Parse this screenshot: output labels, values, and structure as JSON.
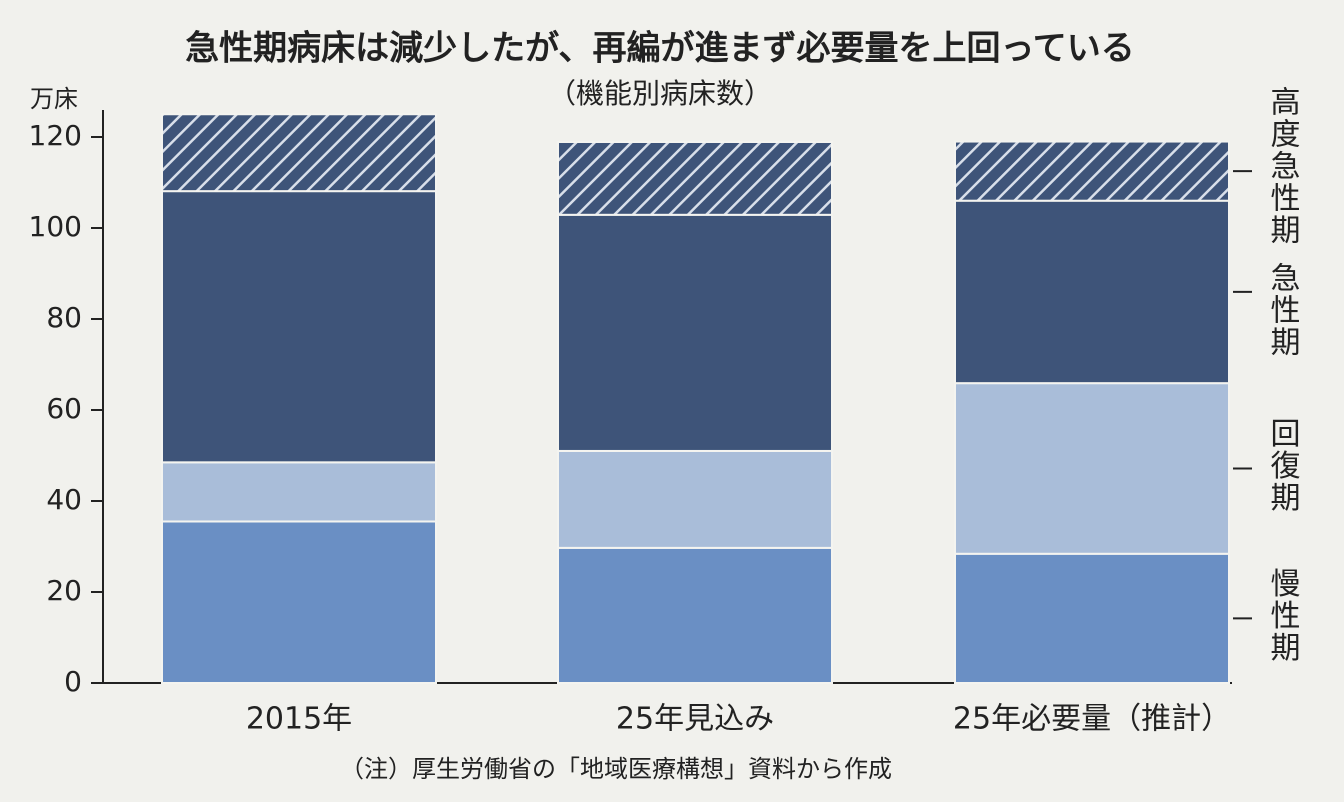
{
  "chart_data": {
    "type": "stacked_bar",
    "title": "急性期病床は減少したが、再編が進まず必要量を上回っている",
    "subtitle": "（機能別病床数）",
    "y_unit": "万床",
    "note": "（注）厚生労働省の「地域医療構想」資料から作成",
    "categories": [
      "2015年",
      "25年見込み",
      "25年必要量（推計）"
    ],
    "series": [
      {
        "name": "慢性期",
        "color": "#6a8fc4",
        "values": [
          35.5,
          29.7,
          28.4
        ]
      },
      {
        "name": "回復期",
        "color": "#a9bdd9",
        "values": [
          13.0,
          21.3,
          37.5
        ]
      },
      {
        "name": "急性期",
        "color": "#3e5479",
        "values": [
          59.6,
          51.9,
          40.1
        ]
      },
      {
        "name": "高度急性期",
        "color": "#3e5479",
        "hatched": true,
        "values": [
          16.9,
          16.0,
          13.0
        ]
      }
    ],
    "ylim": [
      0,
      120
    ],
    "yticks": [
      0,
      20,
      40,
      60,
      80,
      100,
      120
    ]
  }
}
